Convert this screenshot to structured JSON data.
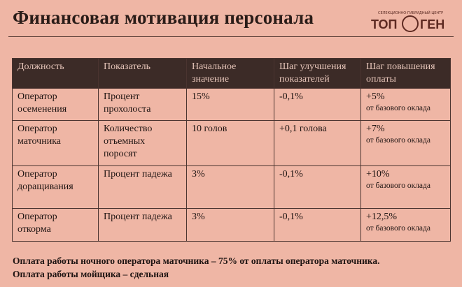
{
  "header": {
    "title": "Финансовая мотивация персонала",
    "logo": {
      "subtitle": "СЕЛЕКЦИОННО-ГИБРИДНЫЙ ЦЕНТР",
      "left": "ТОП",
      "right": "ГЕН"
    }
  },
  "table": {
    "columns": [
      "Должность",
      "Показатель",
      "Начальное значение",
      "Шаг улучшения показателей",
      "Шаг повышения оплаты"
    ],
    "rows": [
      [
        "Оператор осеменения",
        "Процент прохолоста",
        "15%",
        "-0,1%",
        {
          "main": "+5%",
          "note": "от базового оклада"
        }
      ],
      [
        "Оператор маточника",
        "Количество отъемных поросят",
        "10 голов",
        "+0,1 голова",
        {
          "main": "+7%",
          "note": "от базового оклада"
        }
      ],
      [
        "Оператор доращивания",
        "Процент падежа",
        "3%",
        "-0,1%",
        {
          "main": "+10%",
          "note": "от базового оклада"
        }
      ],
      [
        "Оператор откорма",
        "Процент падежа",
        "3%",
        "-0,1%",
        {
          "main": "+12,5%",
          "note": "от базового оклада"
        }
      ]
    ]
  },
  "footer": [
    "Оплата работы ночного оператора маточника – 75% от оплаты оператора маточника.",
    "Оплата работы мойщика – сдельная"
  ]
}
